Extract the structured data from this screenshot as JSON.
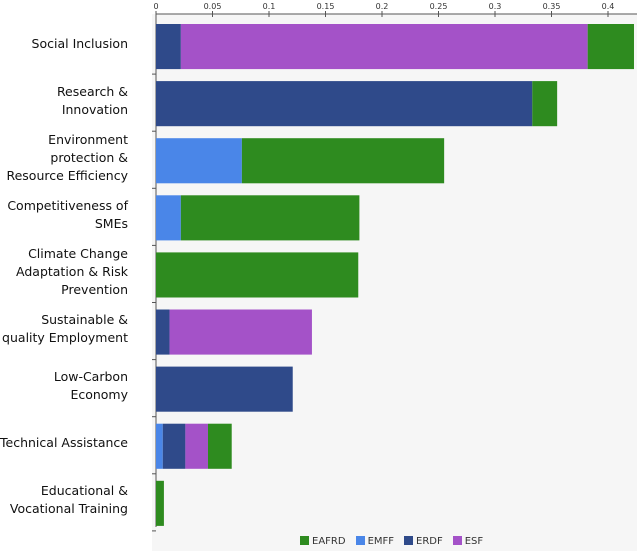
{
  "chart_data": {
    "type": "bar",
    "orientation": "horizontal",
    "stacked": true,
    "categories": [
      "Social Inclusion",
      "Research & Innovation",
      "Environment protection & Resource Efficiency",
      "Competitiveness of SMEs",
      "Climate Change Adaptation & Risk Prevention",
      "Sustainable & quality Employment",
      "Low-Carbon Economy",
      "Technical Assistance",
      "Educational & Vocational Training"
    ],
    "series": [
      {
        "name": "EMFF",
        "color": "#4a86e8",
        "values": [
          0,
          0,
          0.076,
          0.022,
          0,
          0,
          0,
          0.006,
          0
        ]
      },
      {
        "name": "ERDF",
        "color": "#2f4a8a",
        "values": [
          0.022,
          0.333,
          0,
          0,
          0,
          0.012,
          0.121,
          0.02,
          0
        ]
      },
      {
        "name": "ESF",
        "color": "#a452c8",
        "values": [
          0.36,
          0,
          0,
          0,
          0,
          0.126,
          0,
          0.02,
          0
        ]
      },
      {
        "name": "EAFRD",
        "color": "#2e8b1f",
        "values": [
          0.041,
          0.022,
          0.179,
          0.158,
          0.179,
          0,
          0,
          0.021,
          0.007
        ]
      }
    ],
    "legend_order": [
      "EAFRD",
      "EMFF",
      "ERDF",
      "ESF"
    ],
    "xticks": [
      "0",
      "0.05",
      "0.1",
      "0.15",
      "0.2",
      "0.25",
      "0.3",
      "0.35",
      "0.4"
    ],
    "xlim": [
      0,
      0.43
    ],
    "legend_position": "bottom-right",
    "grid": false
  }
}
